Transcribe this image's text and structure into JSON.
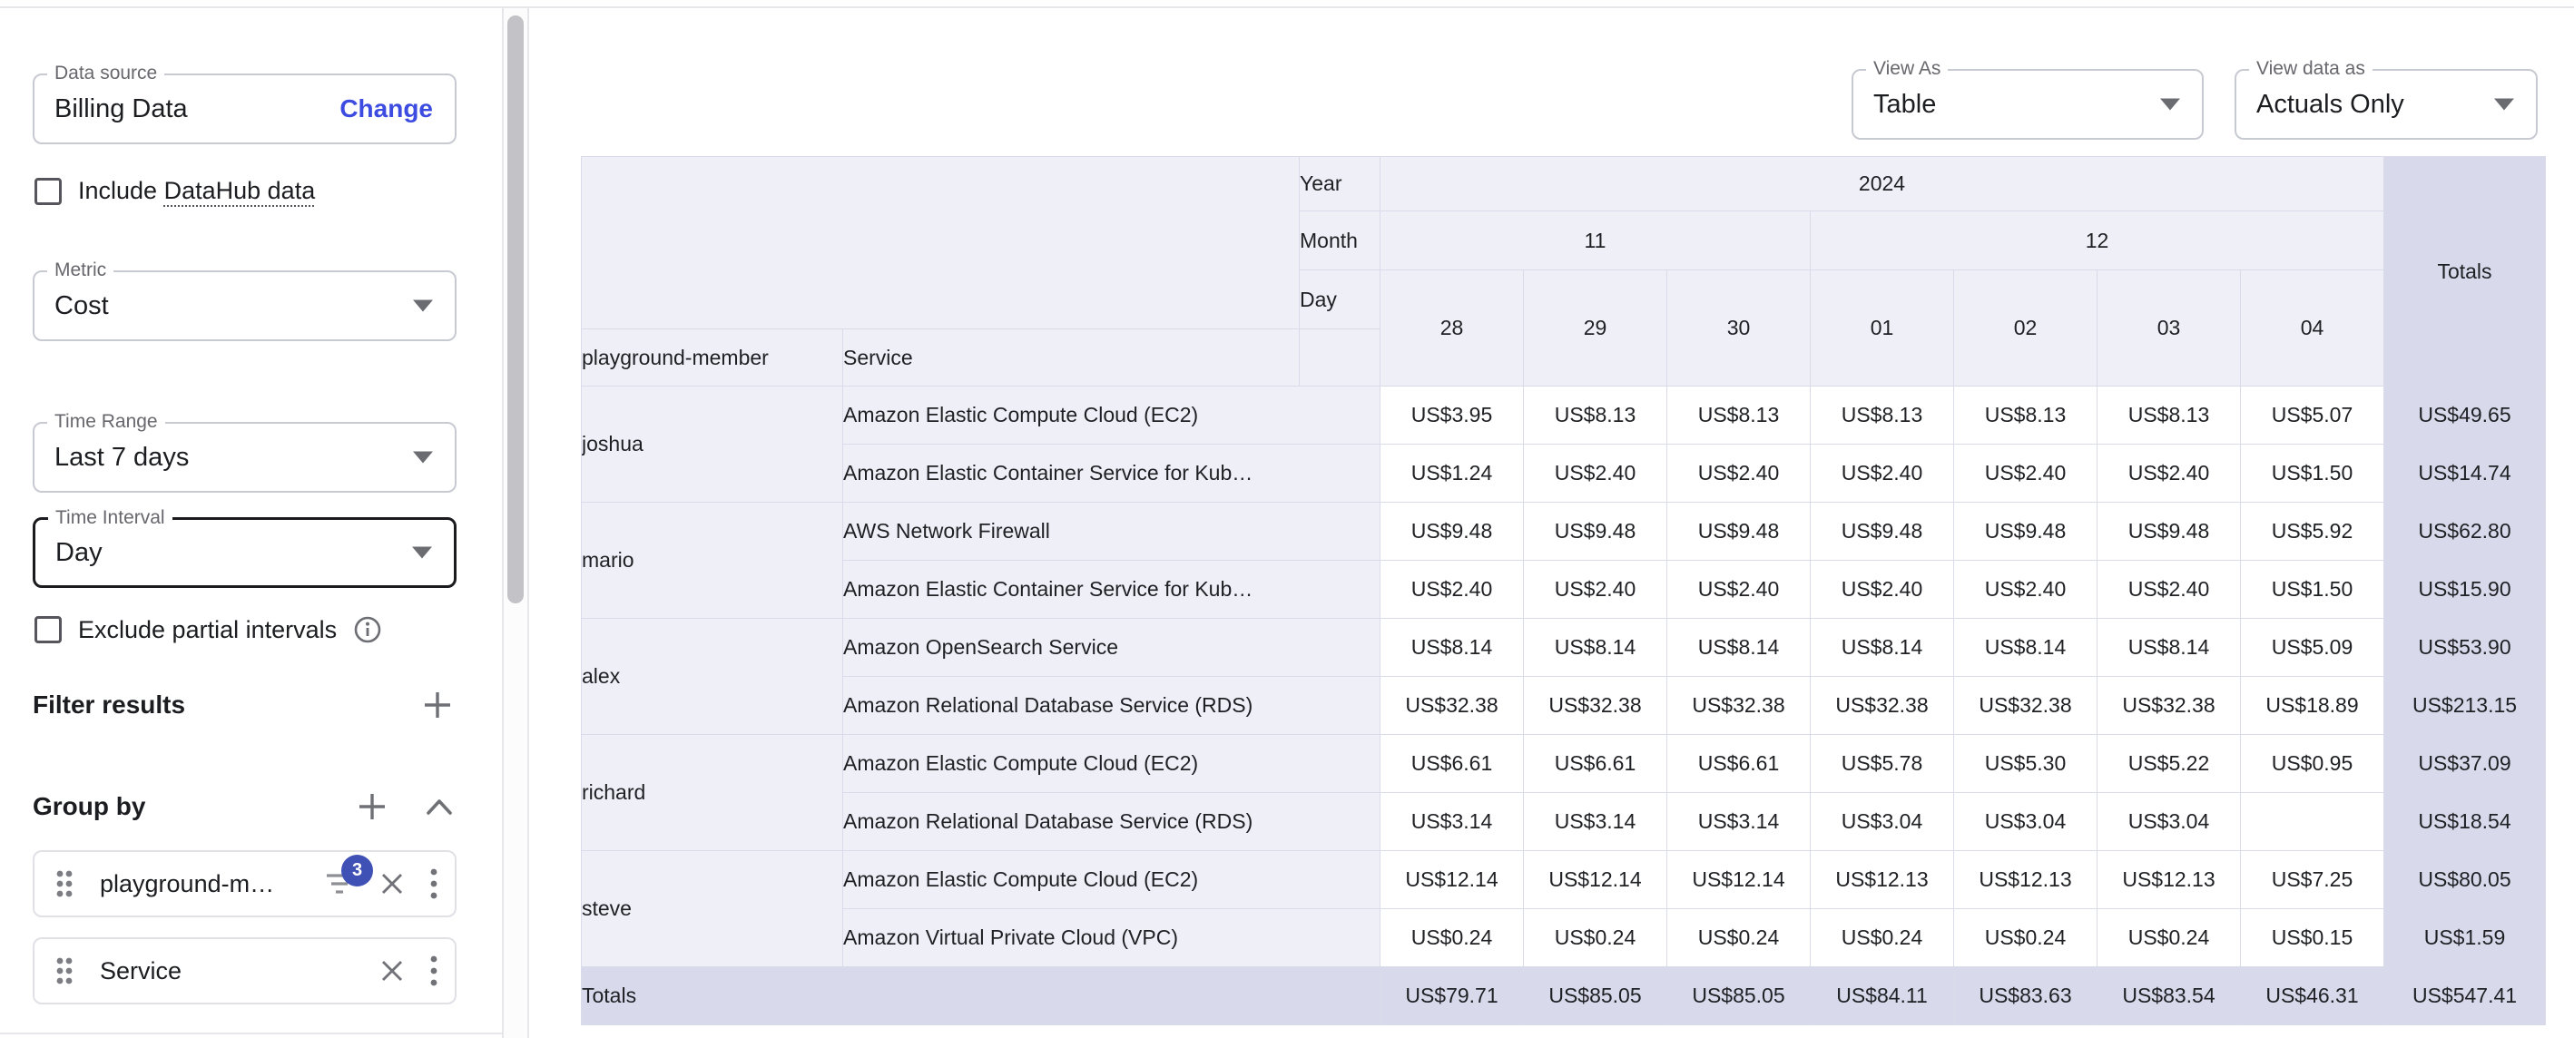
{
  "sidebar": {
    "data_source": {
      "label": "Data source",
      "value": "Billing Data",
      "action": "Change"
    },
    "include_datahub": {
      "prefix": "Include",
      "link": "DataHub data"
    },
    "metric": {
      "label": "Metric",
      "value": "Cost"
    },
    "time_range": {
      "label": "Time Range",
      "value": "Last 7 days"
    },
    "time_interval": {
      "label": "Time Interval",
      "value": "Day"
    },
    "exclude_partial": {
      "label": "Exclude partial intervals"
    },
    "filter_results": {
      "label": "Filter results"
    },
    "group_by": {
      "label": "Group by",
      "chips": [
        {
          "label": "playground-m…",
          "badge": "3"
        },
        {
          "label": "Service"
        }
      ]
    }
  },
  "toolbar": {
    "view_as": {
      "label": "View As",
      "value": "Table"
    },
    "view_data_as": {
      "label": "View data as",
      "value": "Actuals Only"
    }
  },
  "table": {
    "axis": {
      "year": "Year",
      "month": "Month",
      "day": "Day"
    },
    "year_value": "2024",
    "months": [
      {
        "label": "11"
      },
      {
        "label": "12"
      }
    ],
    "days": [
      "28",
      "29",
      "30",
      "01",
      "02",
      "03",
      "04"
    ],
    "col_headers": {
      "member": "playground-member",
      "service": "Service",
      "totals": "Totals"
    },
    "groups": [
      {
        "member": "joshua",
        "rows": [
          {
            "service": "Amazon Elastic Compute Cloud (EC2)",
            "values": [
              "US$3.95",
              "US$8.13",
              "US$8.13",
              "US$8.13",
              "US$8.13",
              "US$8.13",
              "US$5.07"
            ],
            "total": "US$49.65"
          },
          {
            "service": "Amazon Elastic Container Service for Kub…",
            "values": [
              "US$1.24",
              "US$2.40",
              "US$2.40",
              "US$2.40",
              "US$2.40",
              "US$2.40",
              "US$1.50"
            ],
            "total": "US$14.74"
          }
        ]
      },
      {
        "member": "mario",
        "rows": [
          {
            "service": "AWS Network Firewall",
            "values": [
              "US$9.48",
              "US$9.48",
              "US$9.48",
              "US$9.48",
              "US$9.48",
              "US$9.48",
              "US$5.92"
            ],
            "total": "US$62.80"
          },
          {
            "service": "Amazon Elastic Container Service for Kub…",
            "values": [
              "US$2.40",
              "US$2.40",
              "US$2.40",
              "US$2.40",
              "US$2.40",
              "US$2.40",
              "US$1.50"
            ],
            "total": "US$15.90"
          }
        ]
      },
      {
        "member": "alex",
        "rows": [
          {
            "service": "Amazon OpenSearch Service",
            "values": [
              "US$8.14",
              "US$8.14",
              "US$8.14",
              "US$8.14",
              "US$8.14",
              "US$8.14",
              "US$5.09"
            ],
            "total": "US$53.90"
          },
          {
            "service": "Amazon Relational Database Service (RDS)",
            "values": [
              "US$32.38",
              "US$32.38",
              "US$32.38",
              "US$32.38",
              "US$32.38",
              "US$32.38",
              "US$18.89"
            ],
            "total": "US$213.15"
          }
        ]
      },
      {
        "member": "richard",
        "rows": [
          {
            "service": "Amazon Elastic Compute Cloud (EC2)",
            "values": [
              "US$6.61",
              "US$6.61",
              "US$6.61",
              "US$5.78",
              "US$5.30",
              "US$5.22",
              "US$0.95"
            ],
            "total": "US$37.09"
          },
          {
            "service": "Amazon Relational Database Service (RDS)",
            "values": [
              "US$3.14",
              "US$3.14",
              "US$3.14",
              "US$3.04",
              "US$3.04",
              "US$3.04",
              ""
            ],
            "total": "US$18.54"
          }
        ]
      },
      {
        "member": "steve",
        "rows": [
          {
            "service": "Amazon Elastic Compute Cloud (EC2)",
            "values": [
              "US$12.14",
              "US$12.14",
              "US$12.14",
              "US$12.13",
              "US$12.13",
              "US$12.13",
              "US$7.25"
            ],
            "total": "US$80.05"
          },
          {
            "service": "Amazon Virtual Private Cloud (VPC)",
            "values": [
              "US$0.24",
              "US$0.24",
              "US$0.24",
              "US$0.24",
              "US$0.24",
              "US$0.24",
              "US$0.15"
            ],
            "total": "US$1.59"
          }
        ]
      }
    ],
    "totals_row": {
      "label": "Totals",
      "values": [
        "US$79.71",
        "US$85.05",
        "US$85.05",
        "US$84.11",
        "US$83.63",
        "US$83.54",
        "US$46.31"
      ],
      "total": "US$547.41"
    }
  },
  "colors": {
    "accent_link": "#3c4ce0",
    "badge": "#3f51b5",
    "header_bg": "#eeeff7",
    "totals_bg": "#d8daec"
  }
}
